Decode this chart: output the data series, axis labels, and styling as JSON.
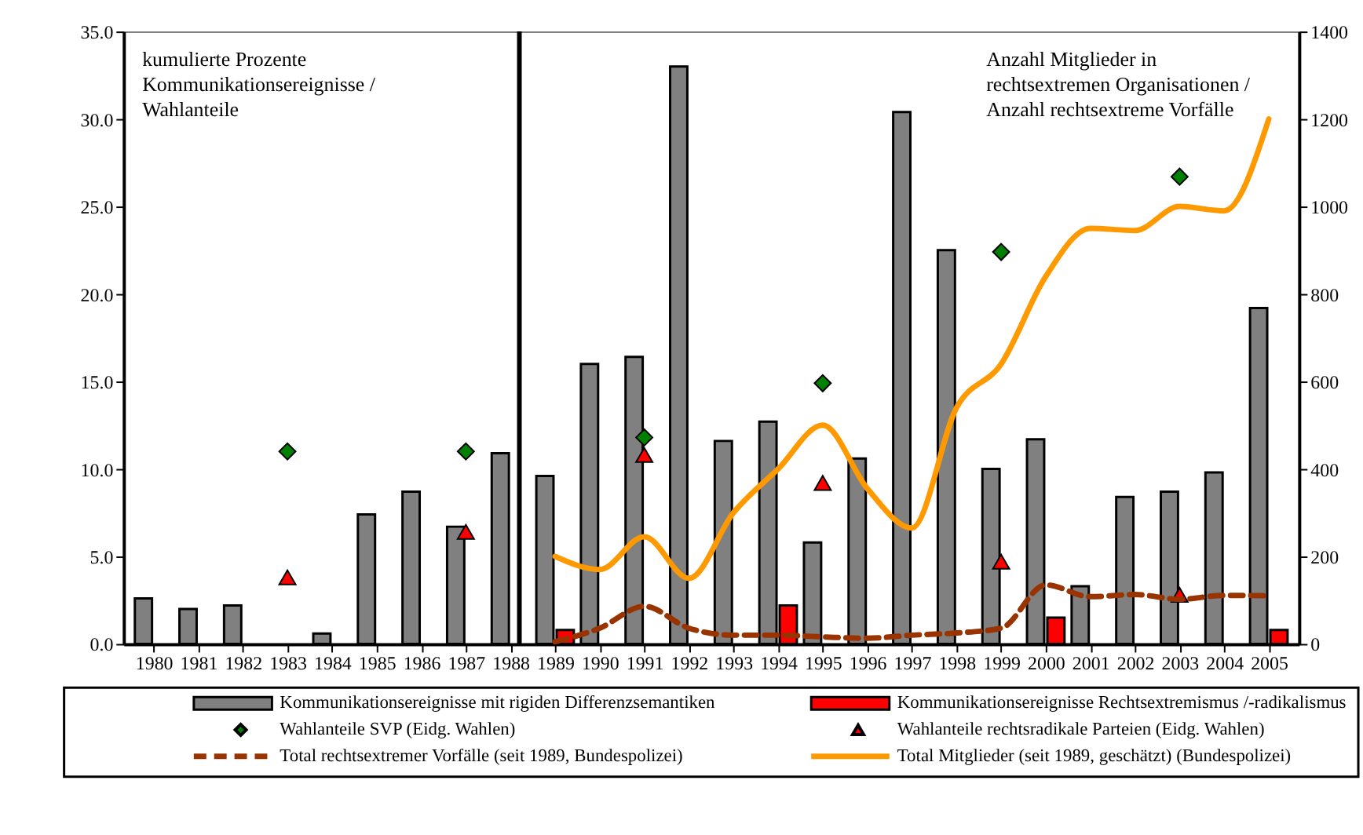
{
  "chart_data": {
    "type": "bar",
    "ylabel": "kumulierte Prozente\nKommunikationsereignisse  /\nWahlanteile",
    "y2label": "Anzahl Mitglieder in\nrechtsextremen Organisationen /\nAnzahl rechtsextreme Vorfälle",
    "x": [
      1980,
      1981,
      1982,
      1983,
      1984,
      1985,
      1986,
      1987,
      1988,
      1989,
      1990,
      1991,
      1992,
      1993,
      1994,
      1995,
      1996,
      1997,
      1998,
      1999,
      2000,
      2001,
      2002,
      2003,
      2004,
      2005
    ],
    "xlim": [
      1979.5,
      2005.5
    ],
    "xticks": [
      1980,
      1981,
      1982,
      1983,
      1984,
      1985,
      1986,
      1987,
      1988,
      1989,
      1990,
      1991,
      1992,
      1993,
      1994,
      1995,
      1996,
      1997,
      1998,
      1999,
      2000,
      2001,
      2002,
      2003,
      2004,
      2005
    ],
    "ylim": [
      0,
      35
    ],
    "yticks": [
      {
        "value": 0,
        "label": "0.0"
      },
      {
        "value": 5,
        "label": "5.0"
      },
      {
        "value": 10,
        "label": "10.0"
      },
      {
        "value": 15,
        "label": "15.0"
      },
      {
        "value": 20,
        "label": "20.0"
      },
      {
        "value": 25,
        "label": "25.0"
      },
      {
        "value": 30,
        "label": "30.0"
      },
      {
        "value": 35,
        "label": "35.0"
      }
    ],
    "y2lim": [
      0,
      1400
    ],
    "y2ticks": [
      0,
      200,
      400,
      600,
      800,
      1000,
      1200,
      1400
    ],
    "grid": false,
    "legend": "bottom",
    "ref_lines": [
      {
        "axis": "x",
        "value": 1988.2,
        "color": "#000000"
      }
    ],
    "series": [
      {
        "name": "Kommunikationsereignisse mit rigiden Differenzsemantiken",
        "color": "#808080",
        "values": [
          2.6,
          2.0,
          2.2,
          null,
          0.6,
          7.4,
          8.7,
          6.7,
          10.9,
          9.6,
          16.0,
          16.4,
          33.0,
          11.6,
          12.7,
          5.8,
          10.6,
          30.4,
          22.5,
          10.0,
          11.7,
          3.3,
          8.4,
          8.7,
          9.8,
          19.2
        ]
      },
      {
        "name": "Kommunikationsereignisse Rechtsextremismus /-radikalismus",
        "color": "#ff0000",
        "values": [
          null,
          null,
          null,
          null,
          null,
          null,
          null,
          null,
          null,
          0.8,
          null,
          null,
          null,
          null,
          2.2,
          null,
          null,
          null,
          null,
          null,
          1.5,
          null,
          null,
          null,
          null,
          0.8
        ]
      },
      {
        "name": "Wahlanteile SVP (Eidg. Wahlen)",
        "type": "scatter",
        "marker": "diamond",
        "color": "#008000",
        "values": [
          null,
          null,
          null,
          11.0,
          null,
          null,
          null,
          11.0,
          null,
          null,
          null,
          11.8,
          null,
          null,
          null,
          14.9,
          null,
          null,
          null,
          22.4,
          null,
          null,
          null,
          26.7,
          null,
          null
        ]
      },
      {
        "name": "Wahlanteile rechtsradikale Parteien (Eidg. Wahlen)",
        "type": "scatter",
        "marker": "triangle",
        "color": "#ff0000",
        "values": [
          null,
          null,
          null,
          3.8,
          null,
          null,
          null,
          6.4,
          null,
          null,
          null,
          10.8,
          null,
          null,
          null,
          9.2,
          null,
          null,
          null,
          4.7,
          null,
          null,
          null,
          2.8,
          null,
          null
        ]
      },
      {
        "name": "Total rechtsextremer Vorfälle (seit 1989, Bundespolizei)",
        "type": "line",
        "axis": "y2",
        "line_style": "dashed",
        "color": "#993300",
        "values": [
          null,
          null,
          null,
          null,
          null,
          null,
          null,
          null,
          null,
          5,
          36,
          86,
          36,
          20,
          20,
          16,
          13,
          20,
          25,
          36,
          135,
          108,
          113,
          102,
          111,
          110
        ]
      },
      {
        "name": "Total Mitglieder (seit 1989, geschätzt) (Bundespolizei)",
        "type": "line",
        "axis": "y2",
        "line_style": "solid",
        "color": "#ff9900",
        "values": [
          null,
          null,
          null,
          null,
          null,
          null,
          null,
          null,
          null,
          200,
          170,
          245,
          150,
          300,
          400,
          500,
          355,
          265,
          540,
          640,
          840,
          950,
          945,
          1000,
          990,
          1200
        ]
      }
    ]
  }
}
